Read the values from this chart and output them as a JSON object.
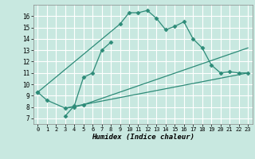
{
  "title": "",
  "xlabel": "Humidex (Indice chaleur)",
  "ylabel": "",
  "background_color": "#c8e8e0",
  "grid_color": "#ffffff",
  "line_color": "#2d8b78",
  "xlim": [
    -0.5,
    23.5
  ],
  "ylim": [
    6.5,
    17.0
  ],
  "xticks": [
    0,
    1,
    2,
    3,
    4,
    5,
    6,
    7,
    8,
    9,
    10,
    11,
    12,
    13,
    14,
    15,
    16,
    17,
    18,
    19,
    20,
    21,
    22,
    23
  ],
  "yticks": [
    7,
    8,
    9,
    10,
    11,
    12,
    13,
    14,
    15,
    16
  ],
  "series": [
    {
      "x": [
        0,
        9,
        10,
        11,
        12,
        13,
        14,
        15,
        16,
        17,
        18,
        19,
        20,
        21,
        22,
        23
      ],
      "y": [
        9.3,
        15.3,
        16.3,
        16.3,
        16.5,
        15.8,
        14.8,
        15.1,
        15.5,
        14.0,
        13.2,
        11.7,
        11.0,
        11.1,
        11.0,
        11.0
      ],
      "style": "-",
      "marker": "D",
      "markersize": 2.5
    },
    {
      "x": [
        3,
        4,
        5,
        6,
        7,
        8
      ],
      "y": [
        7.2,
        8.1,
        10.6,
        11.0,
        13.0,
        13.7
      ],
      "style": "-",
      "marker": "D",
      "markersize": 2.5
    },
    {
      "x": [
        0,
        1,
        3,
        4,
        5
      ],
      "y": [
        9.3,
        8.6,
        7.9,
        8.0,
        8.2
      ],
      "style": "-",
      "marker": "D",
      "markersize": 2.5
    },
    {
      "x": [
        3,
        23
      ],
      "y": [
        7.9,
        11.0
      ],
      "style": "-",
      "marker": null,
      "markersize": 0
    },
    {
      "x": [
        5,
        23
      ],
      "y": [
        8.2,
        13.2
      ],
      "style": "-",
      "marker": null,
      "markersize": 0
    }
  ]
}
